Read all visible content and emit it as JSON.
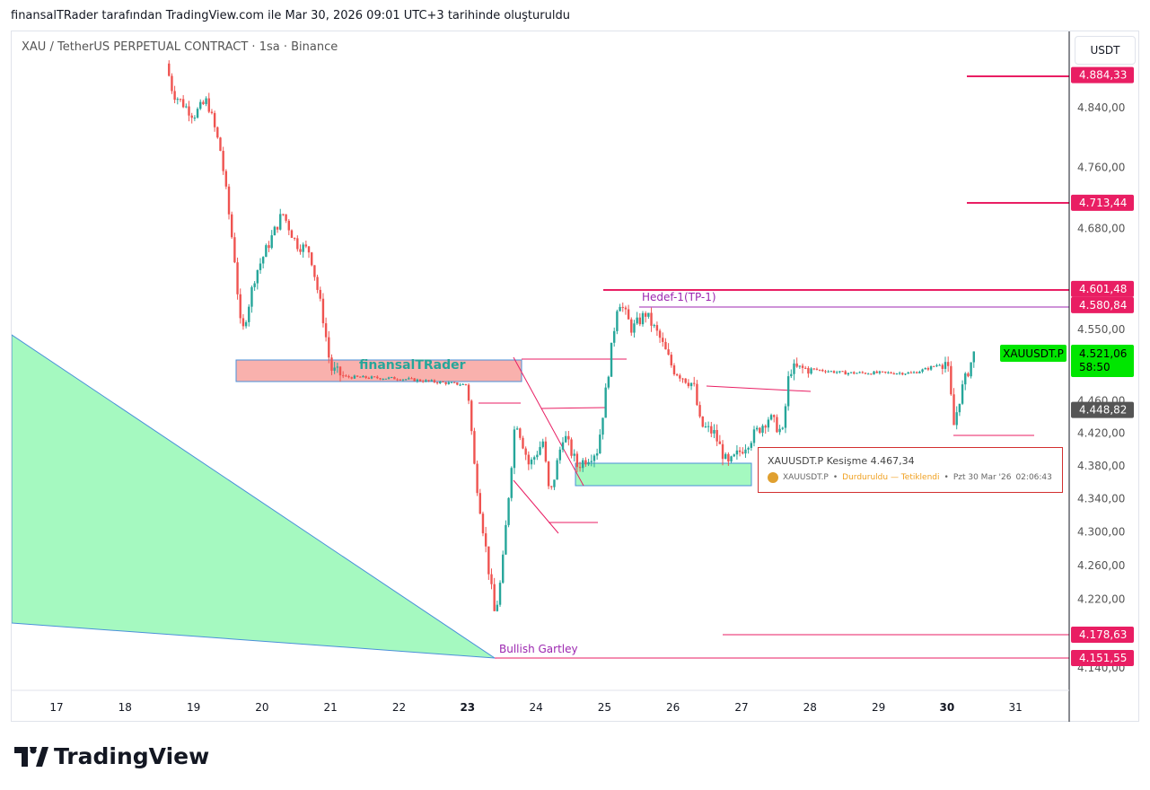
{
  "header": {
    "text": "finansalTRader tarafından TradingView.com ile Mar 30, 2026 09:01 UTC+3 tarihinde oluşturuldu"
  },
  "symbol": {
    "title": "XAU / TetherUS PERPETUAL CONTRACT · 1sa · Binance"
  },
  "currency": "USDT",
  "colors": {
    "up": "#26a69a",
    "down": "#ef5350",
    "line": "#e91e63",
    "green": "#00e600"
  },
  "chart_data": {
    "type": "candlestick",
    "y_ticks": [
      4840,
      4760,
      4680,
      4550,
      4460,
      4420,
      4380,
      4340,
      4300,
      4260,
      4220,
      4140
    ],
    "y_tick_labels": [
      "4.840,00",
      "4.760,00",
      "4.680,00",
      "4.550,00",
      "4.460,00",
      "4.420,00",
      "4.380,00",
      "4.340,00",
      "4.300,00",
      "4.260,00",
      "4.220,00",
      "4.140,00"
    ],
    "x_ticks": [
      "17",
      "18",
      "19",
      "20",
      "21",
      "22",
      "23",
      "24",
      "25",
      "26",
      "27",
      "28",
      "29",
      "30",
      "31"
    ],
    "price_path": [
      [
        18.6,
        4900
      ],
      [
        18.7,
        4860
      ],
      [
        19.0,
        4830
      ],
      [
        19.2,
        4850
      ],
      [
        19.4,
        4780
      ],
      [
        19.6,
        4640
      ],
      [
        19.7,
        4540
      ],
      [
        19.9,
        4620
      ],
      [
        20.3,
        4700
      ],
      [
        20.5,
        4660
      ],
      [
        20.7,
        4650
      ],
      [
        20.9,
        4560
      ],
      [
        21.0,
        4500
      ],
      [
        21.2,
        4490
      ],
      [
        22.0,
        4488
      ],
      [
        22.5,
        4484
      ],
      [
        23.0,
        4480
      ],
      [
        23.1,
        4380
      ],
      [
        23.4,
        4200
      ],
      [
        23.5,
        4250
      ],
      [
        23.7,
        4440
      ],
      [
        23.9,
        4380
      ],
      [
        24.1,
        4410
      ],
      [
        24.2,
        4340
      ],
      [
        24.4,
        4420
      ],
      [
        24.6,
        4380
      ],
      [
        24.9,
        4400
      ],
      [
        25.0,
        4460
      ],
      [
        25.2,
        4590
      ],
      [
        25.4,
        4550
      ],
      [
        25.6,
        4570
      ],
      [
        25.8,
        4540
      ],
      [
        26.0,
        4500
      ],
      [
        26.3,
        4480
      ],
      [
        26.4,
        4430
      ],
      [
        26.6,
        4420
      ],
      [
        26.8,
        4380
      ],
      [
        27.0,
        4400
      ],
      [
        27.2,
        4420
      ],
      [
        27.4,
        4440
      ],
      [
        27.6,
        4420
      ],
      [
        27.7,
        4500
      ],
      [
        28.0,
        4500
      ],
      [
        28.5,
        4495
      ],
      [
        29.5,
        4495
      ],
      [
        29.7,
        4500
      ],
      [
        30.0,
        4510
      ],
      [
        30.1,
        4430
      ],
      [
        30.2,
        4470
      ],
      [
        30.4,
        4521
      ]
    ],
    "price_labels": [
      {
        "value": 4884.33,
        "text": "4.884,33",
        "color": "#e91e63"
      },
      {
        "value": 4713.44,
        "text": "4.713,44",
        "color": "#e91e63"
      },
      {
        "value": 4601.48,
        "text": "4.601,48",
        "color": "#e91e63"
      },
      {
        "value": 4580.84,
        "text": "4.580,84",
        "color": "#e91e63"
      },
      {
        "value": 4448.82,
        "text": "4.448,82",
        "color": "#555555"
      },
      {
        "value": 4178.63,
        "text": "4.178,63",
        "color": "#e91e63"
      },
      {
        "value": 4151.55,
        "text": "4.151,55",
        "color": "#e91e63"
      }
    ],
    "last": {
      "symbol": "XAUUSDT.P",
      "price": "4.521,06",
      "countdown": "58:50",
      "value": 4521.06
    }
  },
  "annotations": {
    "watermark": "finansalTRader",
    "target": "Hedef-1(TP-1)",
    "pattern": "Bullish Gartley"
  },
  "alert": {
    "title": "XAUUSDT.P Kesişme 4.467,34",
    "symbol": "XAUUSDT.P",
    "status": "Durduruldu — Tetiklendi",
    "date": "Pzt 30 Mar '26",
    "time": "02:06:43"
  },
  "logo": "TradingView"
}
